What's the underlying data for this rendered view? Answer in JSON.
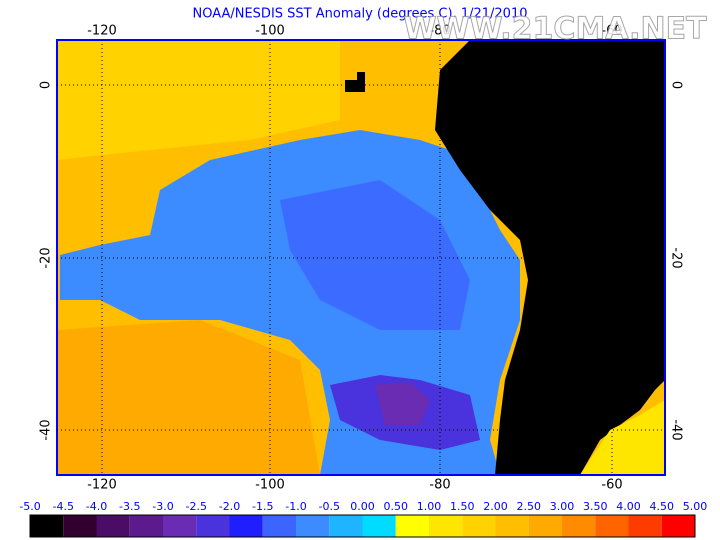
{
  "title": "NOAA/NESDIS SST Anomaly (degrees C), 1/21/2010",
  "watermark": "WWW.21CMA.NET",
  "lon_labels": [
    "-120",
    "-100",
    "-80",
    "-60"
  ],
  "lat_labels": [
    "0",
    "-20",
    "-40"
  ],
  "colorbar": {
    "labels": [
      "-5.0",
      "-4.5",
      "-4.0",
      "-3.5",
      "-3.0",
      "-2.5",
      "-2.0",
      "-1.5",
      "-1.0",
      "-0.5",
      "0.00",
      "0.50",
      "1.00",
      "1.50",
      "2.00",
      "2.50",
      "3.00",
      "3.50",
      "4.00",
      "4.50",
      "5.00"
    ],
    "colors": [
      "#000000",
      "#32002e",
      "#4a0c66",
      "#5c1a8c",
      "#6a2cb2",
      "#4a32dc",
      "#1e1eff",
      "#3c64ff",
      "#3c8cff",
      "#1eb4ff",
      "#00dcff",
      "#ffff00",
      "#ffe600",
      "#ffd200",
      "#ffbe00",
      "#ffaa00",
      "#ff8c00",
      "#ff6400",
      "#ff3c00",
      "#ff0000"
    ]
  }
}
